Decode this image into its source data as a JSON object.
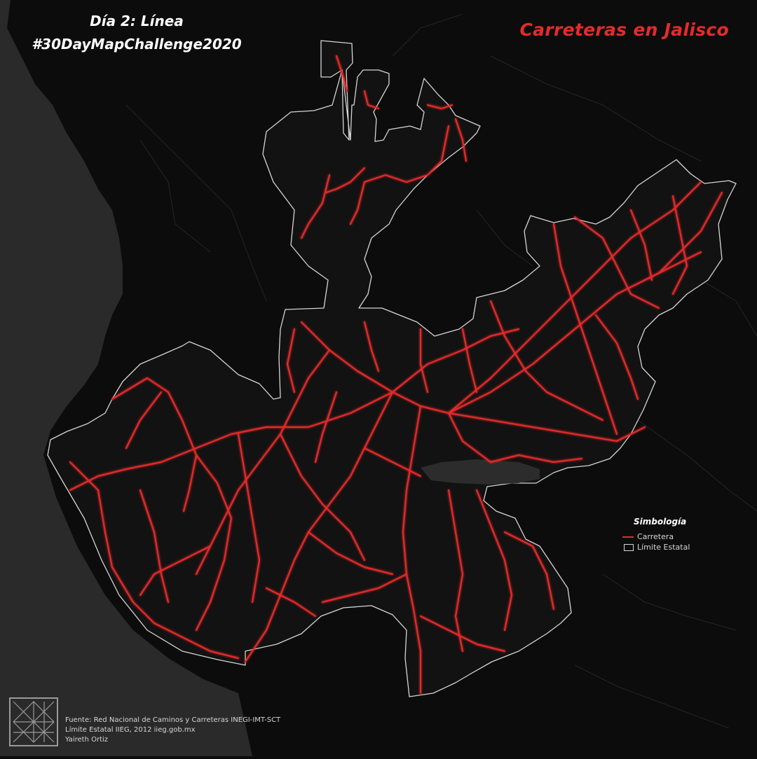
{
  "header": {
    "challenge_line1": "Día 2: Línea",
    "challenge_line2": "#30DayMapChallenge2020",
    "map_title": "Carreteras en Jalisco"
  },
  "legend": {
    "title": "Simbología",
    "items": [
      {
        "label": "Carretera",
        "symbol": "line",
        "color": "#e32b2b"
      },
      {
        "label": "Límite Estatal",
        "symbol": "outline",
        "color": "#d6d6d6"
      }
    ]
  },
  "footer": {
    "source_line1": "Fuente: Red Nacional de Caminos y Carreteras INEGI-IMT-SCT",
    "source_line2": "Límite Estatal IIEG, 2012 iieg.gob.mx",
    "author": "Yaireth Ortiz"
  },
  "colors": {
    "background": "#0c0c0c",
    "ocean": "#2a2a2a",
    "road": "#e32b2b",
    "boundary": "#d6d6d6",
    "lake": "#2c2c2c"
  },
  "icons": {
    "logo": "geometric-logo-icon"
  }
}
